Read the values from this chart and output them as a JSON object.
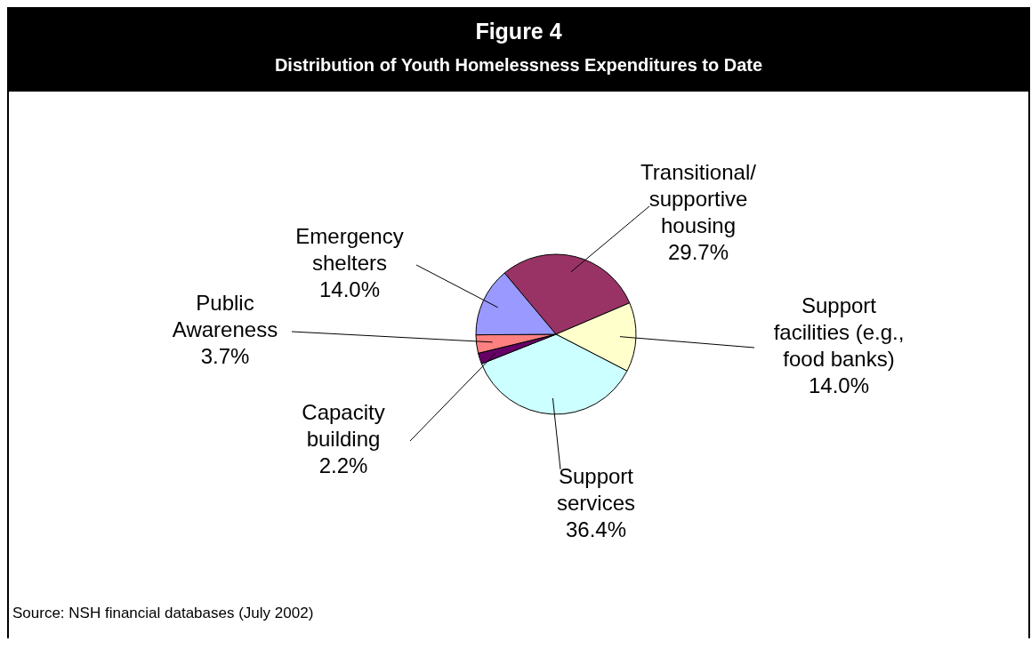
{
  "chart_data": {
    "type": "pie",
    "title": "Figure 4",
    "subtitle": "Distribution of Youth Homelessness Expenditures to Date",
    "categories": [
      "Transitional/ supportive housing",
      "Support facilities (e.g., food banks)",
      "Support services",
      "Capacity building",
      "Public Awareness",
      "Emergency shelters"
    ],
    "values": [
      29.7,
      14.0,
      36.4,
      2.2,
      3.7,
      14.0
    ],
    "value_labels": [
      "29.7%",
      "14.0%",
      "36.4%",
      "2.2%",
      "3.7%",
      "14.0%"
    ],
    "colors": [
      "#993366",
      "#ffffcc",
      "#ccffff",
      "#660066",
      "#ff8080",
      "#9999ff"
    ],
    "annotations": [
      "Source: NSH financial databases (July 2002)"
    ]
  }
}
